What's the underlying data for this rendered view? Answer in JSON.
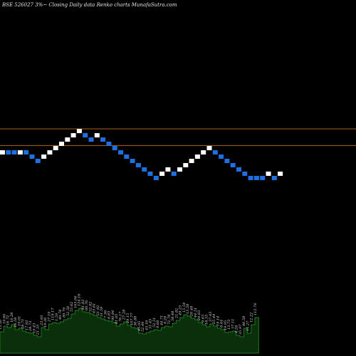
{
  "title": "BSE 526027 3%~  Closing Daily data  Renko  charts MunafaSutra.com",
  "colors": {
    "background": "#000000",
    "up_brick": "#ffffff",
    "down_brick": "#1e6fe0",
    "ref_line": "#a8641e",
    "volume_fill": "#0b2e0b",
    "volume_line": "#1e7a1e"
  },
  "chart_data": {
    "type": "renko",
    "bricks": {
      "levels": [
        12,
        12,
        12,
        12,
        12,
        11,
        10,
        11,
        12,
        13,
        14,
        15,
        16,
        17,
        16,
        15,
        16,
        15,
        14,
        13,
        12,
        11,
        10,
        9,
        8,
        7,
        6,
        7,
        8,
        7,
        8,
        9,
        10,
        11,
        12,
        13,
        12,
        11,
        10,
        9,
        8,
        7,
        6,
        6,
        6,
        7,
        6,
        7
      ],
      "direction": [
        "up",
        "down",
        "down",
        "up",
        "down",
        "down",
        "down",
        "up",
        "up",
        "up",
        "up",
        "up",
        "up",
        "up",
        "down",
        "down",
        "up",
        "down",
        "down",
        "down",
        "down",
        "down",
        "down",
        "down",
        "down",
        "down",
        "down",
        "up",
        "up",
        "down",
        "up",
        "up",
        "up",
        "up",
        "up",
        "up",
        "down",
        "down",
        "down",
        "down",
        "down",
        "down",
        "down",
        "down",
        "down",
        "up",
        "down",
        "up"
      ]
    },
    "reference_lines": [
      17.5,
      13.6
    ],
    "volume": {
      "values": [
        30,
        38,
        36,
        40,
        33,
        35,
        31,
        29,
        28,
        25,
        23,
        36,
        33,
        41,
        43,
        42,
        44,
        47,
        49,
        55,
        60,
        63,
        58,
        57,
        55,
        53,
        50,
        48,
        46,
        45,
        43,
        38,
        41,
        44,
        39,
        36,
        35,
        28,
        27,
        29,
        31,
        33,
        32,
        36,
        38,
        37,
        42,
        46,
        50,
        54,
        52,
        49,
        47,
        43,
        40,
        37,
        41,
        38,
        35,
        33,
        29,
        30,
        31,
        25,
        23,
        35,
        28,
        40,
        50
      ],
      "labels": [
        "13.30",
        "19.60",
        "16.72",
        "16.28",
        "16.58",
        "19.01",
        "28.71",
        "17.93",
        "28.73",
        "19.43",
        "21.55",
        "23.93",
        "19.26",
        "27.19",
        "119.17",
        "1.59",
        "40.78",
        "89.79",
        "52.56",
        "55.62",
        "165.06",
        "124.16",
        "81.83",
        "60.76",
        "52.82",
        "45.61",
        "21.92",
        "31.59",
        "7.36",
        "6.83",
        "90.84",
        "81.05",
        "76.17",
        "27.28",
        "29.15",
        "107.77",
        "36.88",
        "45.95",
        "52.49",
        "45.16",
        "51.45",
        "52.51",
        "8.68",
        "44.71",
        "8.28",
        "72.78",
        "58.48",
        "21.82",
        "49.25",
        "15.54",
        "13.58",
        "20.48",
        "44.51",
        "24.63",
        "9.63",
        "18.55",
        "37.43",
        "25.44",
        "19.14",
        "8.44",
        "19.95",
        "13.73",
        "57.11",
        "4.28",
        "35.97",
        "86.58",
        "11.27",
        "12.22",
        "112.76"
      ]
    }
  }
}
